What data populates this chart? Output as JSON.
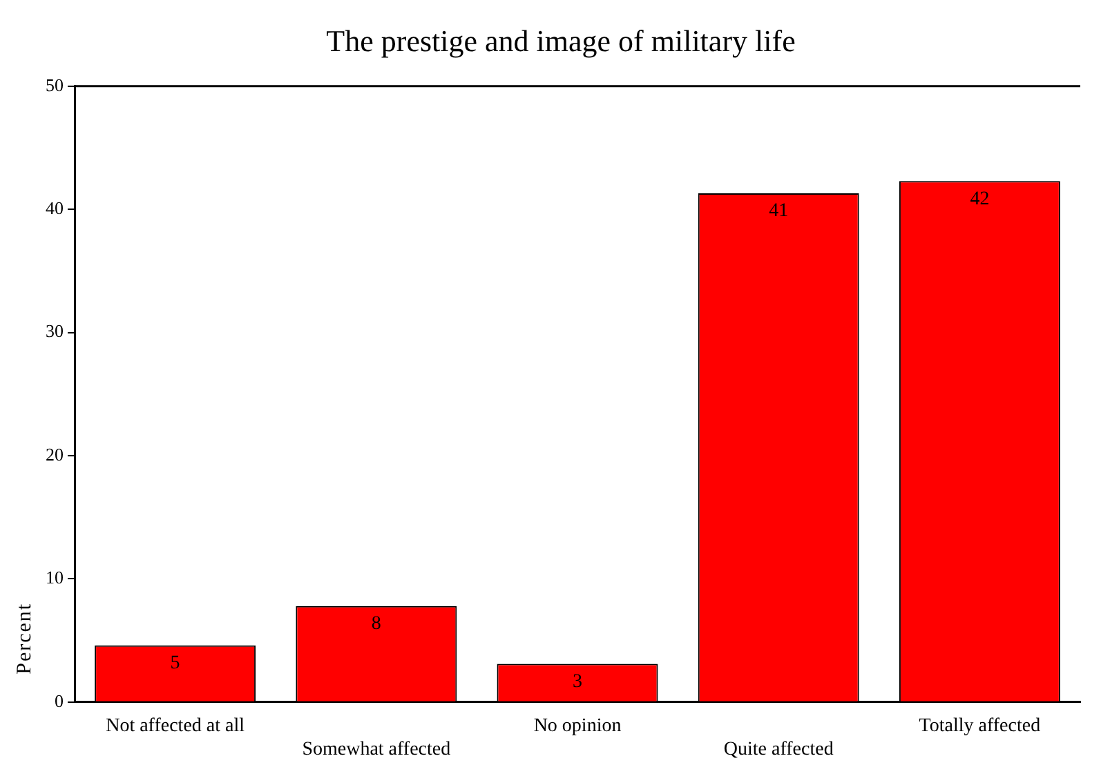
{
  "chart_data": {
    "type": "bar",
    "title": "The prestige and image of military life",
    "ylabel": "Percent",
    "categories": [
      "Not affected at all",
      "Somewhat affected",
      "No opinion",
      "Quite affected",
      "Totally affected"
    ],
    "values": [
      4.6,
      7.8,
      3.1,
      41.3,
      42.3
    ],
    "value_labels": [
      "5",
      "8",
      "3",
      "41",
      "42"
    ],
    "color": "#ff0000",
    "ylim": [
      0,
      50
    ],
    "yticks": [
      0,
      10,
      20,
      30,
      40,
      50
    ],
    "grid": false,
    "legend": false
  }
}
